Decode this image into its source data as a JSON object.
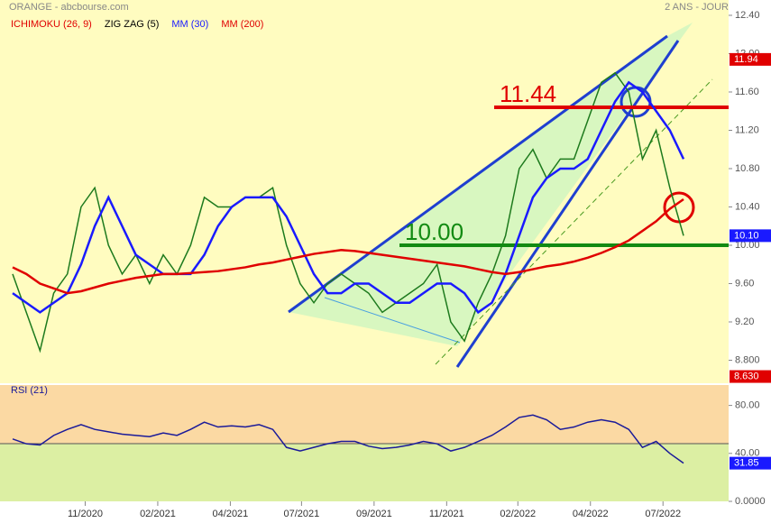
{
  "chart_data": [
    {
      "type": "line",
      "title": "ORANGE - abcbourse.com",
      "subtitle": "2 ANS - JOUR",
      "legend_extra": [
        {
          "name": "ICHIMOKU (26, 9)",
          "color": "#e00000"
        },
        {
          "name": "ZIG ZAG (5)",
          "color": "#000000"
        }
      ],
      "close": {
        "color": "#1d7a1d",
        "values": [
          9.7,
          9.3,
          8.9,
          9.5,
          9.7,
          10.4,
          10.6,
          10.0,
          9.7,
          9.9,
          9.6,
          9.9,
          9.7,
          10.0,
          10.5,
          10.4,
          10.4,
          10.5,
          10.5,
          10.6,
          10.0,
          9.6,
          9.4,
          9.6,
          9.7,
          9.6,
          9.5,
          9.3,
          9.4,
          9.5,
          9.6,
          9.8,
          9.2,
          9.0,
          9.4,
          9.7,
          10.1,
          10.8,
          11.0,
          10.7,
          10.9,
          10.9,
          11.3,
          11.7,
          11.8,
          11.6,
          10.9,
          11.2,
          10.6,
          10.1
        ]
      },
      "series": [
        {
          "name": "MM (30)",
          "color": "#1a1aff",
          "values": [
            9.5,
            9.4,
            9.3,
            9.4,
            9.5,
            9.8,
            10.2,
            10.5,
            10.2,
            9.9,
            9.8,
            9.7,
            9.7,
            9.7,
            9.9,
            10.2,
            10.4,
            10.5,
            10.5,
            10.5,
            10.3,
            10.0,
            9.7,
            9.5,
            9.5,
            9.6,
            9.6,
            9.5,
            9.4,
            9.4,
            9.5,
            9.6,
            9.6,
            9.5,
            9.3,
            9.4,
            9.7,
            10.1,
            10.5,
            10.7,
            10.8,
            10.8,
            10.9,
            11.2,
            11.5,
            11.7,
            11.6,
            11.4,
            11.2,
            10.9
          ]
        },
        {
          "name": "MM (200)",
          "color": "#e00000",
          "values": [
            9.77,
            9.7,
            9.6,
            9.55,
            9.5,
            9.52,
            9.56,
            9.6,
            9.63,
            9.66,
            9.68,
            9.7,
            9.7,
            9.71,
            9.72,
            9.73,
            9.75,
            9.77,
            9.8,
            9.82,
            9.85,
            9.88,
            9.91,
            9.93,
            9.95,
            9.94,
            9.92,
            9.9,
            9.88,
            9.86,
            9.84,
            9.82,
            9.8,
            9.78,
            9.75,
            9.72,
            9.7,
            9.72,
            9.75,
            9.78,
            9.8,
            9.83,
            9.87,
            9.92,
            9.98,
            10.05,
            10.15,
            10.25,
            10.38,
            10.48
          ]
        }
      ],
      "hlines": [
        {
          "value": 11.44,
          "color": "#e00000"
        },
        {
          "value": 10.0,
          "color": "#128a12"
        }
      ],
      "price_tags": [
        {
          "value": 11.94,
          "label": "11.94",
          "color": "#e00000"
        },
        {
          "value": 10.1,
          "label": "10.10",
          "color": "#1a1aff"
        },
        {
          "value": 8.63,
          "label": "8.630",
          "color": "#e00000"
        }
      ],
      "ylim": [
        8.56,
        12.56
      ],
      "yticks": [
        {
          "value": 8.8,
          "label": "8.800"
        },
        {
          "value": 9.2,
          "label": "9.20"
        },
        {
          "value": 9.6,
          "label": "9.60"
        },
        {
          "value": 10.0,
          "label": "10.00"
        },
        {
          "value": 10.4,
          "label": "10.40"
        },
        {
          "value": 10.8,
          "label": "10.80"
        },
        {
          "value": 11.2,
          "label": "11.20"
        },
        {
          "value": 11.6,
          "label": "11.60"
        },
        {
          "value": 12.0,
          "label": "12.00"
        },
        {
          "value": 12.4,
          "label": "12.40"
        }
      ],
      "xlim": [
        0,
        49
      ],
      "xticks": [
        {
          "value": 5.3,
          "label": "11/2020"
        },
        {
          "value": 10.6,
          "label": "02/2021"
        },
        {
          "value": 15.9,
          "label": "04/2021"
        },
        {
          "value": 21.1,
          "label": "07/2021"
        },
        {
          "value": 26.4,
          "label": "09/2021"
        },
        {
          "value": 31.7,
          "label": "11/2021"
        },
        {
          "value": 36.9,
          "label": "02/2022"
        },
        {
          "value": 42.2,
          "label": "04/2022"
        },
        {
          "value": 47.5,
          "label": "07/2022"
        }
      ]
    },
    {
      "type": "line",
      "series": [
        {
          "name": "RSI (21)",
          "color": "#1a1a99",
          "values": [
            52,
            48,
            47,
            55,
            60,
            64,
            60,
            58,
            56,
            55,
            54,
            57,
            55,
            60,
            66,
            62,
            63,
            62,
            64,
            60,
            45,
            42,
            45,
            48,
            50,
            50,
            46,
            44,
            45,
            47,
            50,
            48,
            42,
            45,
            50,
            55,
            62,
            70,
            72,
            68,
            60,
            62,
            66,
            68,
            66,
            60,
            45,
            50,
            40,
            31.85
          ]
        }
      ],
      "price_tags": [
        {
          "value": 31.85,
          "label": "31.85",
          "color": "#1a1aff"
        }
      ],
      "ylim": [
        0,
        97
      ],
      "yticks": [
        {
          "value": 0,
          "label": "0.0000"
        },
        {
          "value": 40,
          "label": "40.00"
        },
        {
          "value": 80,
          "label": "80.00"
        }
      ]
    }
  ]
}
